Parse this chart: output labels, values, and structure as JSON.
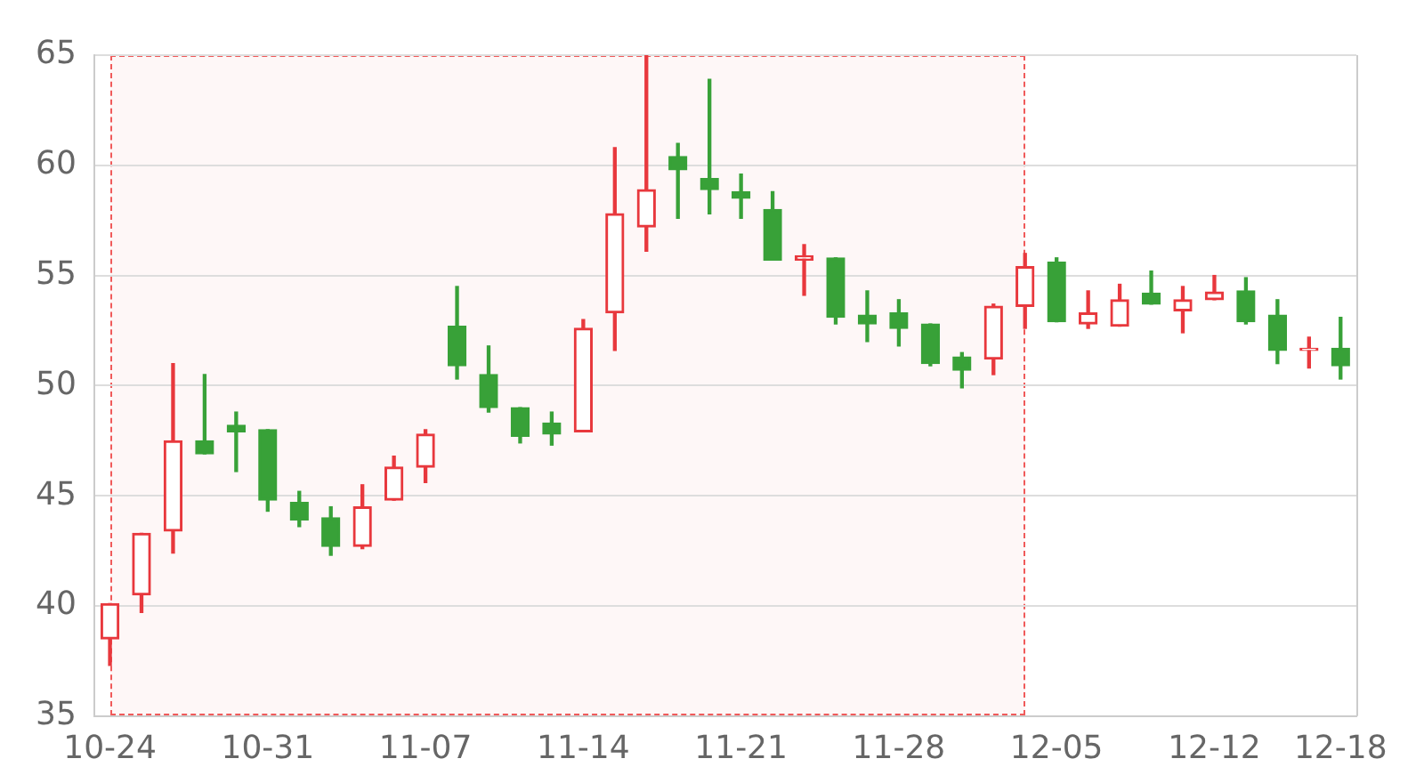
{
  "chart_data": {
    "type": "candlestick",
    "categories": [
      "10-24",
      null,
      null,
      null,
      null,
      "10-31",
      null,
      null,
      null,
      null,
      "11-07",
      null,
      null,
      null,
      null,
      "11-14",
      null,
      null,
      null,
      null,
      "11-21",
      null,
      null,
      null,
      null,
      "11-28",
      null,
      null,
      null,
      null,
      "12-05",
      null,
      null,
      null,
      null,
      "12-12",
      null,
      null,
      null,
      "12-18"
    ],
    "ohlc": [
      [
        38.5,
        40.1,
        37.3,
        40.1
      ],
      [
        40.5,
        43.3,
        39.7,
        43.3
      ],
      [
        43.4,
        51,
        42.4,
        47.5
      ],
      [
        47.5,
        50.5,
        46.9,
        46.9
      ],
      [
        48.2,
        48.8,
        46.1,
        47.9
      ],
      [
        48,
        48,
        44.3,
        44.8
      ],
      [
        44.7,
        45.2,
        43.6,
        43.9
      ],
      [
        44,
        44.5,
        42.3,
        42.7
      ],
      [
        42.7,
        45.5,
        42.6,
        44.5
      ],
      [
        44.8,
        46.8,
        44.8,
        46.3
      ],
      [
        46.3,
        48,
        45.6,
        47.8
      ],
      [
        52.7,
        54.5,
        50.3,
        50.9
      ],
      [
        50.5,
        51.8,
        48.8,
        49
      ],
      [
        49,
        49,
        47.4,
        47.7
      ],
      [
        48.3,
        48.8,
        47.3,
        47.8
      ],
      [
        47.9,
        53,
        47.9,
        52.6
      ],
      [
        53.3,
        60.8,
        51.6,
        57.8
      ],
      [
        57.2,
        65,
        56.1,
        58.9
      ],
      [
        60.4,
        61,
        57.6,
        59.8
      ],
      [
        59.4,
        63.9,
        57.8,
        58.9
      ],
      [
        58.8,
        59.6,
        57.6,
        58.5
      ],
      [
        58,
        58.8,
        55.7,
        55.7
      ],
      [
        55.7,
        56.4,
        54.1,
        55.9
      ],
      [
        55.8,
        55.8,
        52.8,
        53.1
      ],
      [
        53.2,
        54.3,
        52,
        52.8
      ],
      [
        53.3,
        53.9,
        51.8,
        52.6
      ],
      [
        52.8,
        52.8,
        50.9,
        51
      ],
      [
        51.3,
        51.5,
        49.9,
        50.7
      ],
      [
        51.2,
        53.7,
        50.5,
        53.6
      ],
      [
        53.6,
        56,
        52.6,
        55.4
      ],
      [
        55.6,
        55.8,
        52.9,
        52.9
      ],
      [
        52.8,
        54.3,
        52.6,
        53.3
      ],
      [
        52.7,
        54.6,
        52.7,
        53.9
      ],
      [
        54.2,
        55.2,
        53.7,
        53.7
      ],
      [
        53.4,
        54.5,
        52.4,
        53.9
      ],
      [
        53.9,
        55,
        53.9,
        54.25
      ],
      [
        54.3,
        54.9,
        52.8,
        52.9
      ],
      [
        53.2,
        53.9,
        51,
        51.6
      ],
      [
        51.6,
        52.2,
        50.8,
        51.7
      ],
      [
        51.7,
        53.1,
        50.3,
        50.9
      ]
    ],
    "colors": [
      "#e8383d",
      "#e8383d",
      "#e8383d",
      "#38a138",
      "#38a138",
      "#38a138",
      "#38a138",
      "#38a138",
      "#e8383d",
      "#e8383d",
      "#e8383d",
      "#38a138",
      "#38a138",
      "#38a138",
      "#38a138",
      "#e8383d",
      "#e8383d",
      "#e8383d",
      "#38a138",
      "#38a138",
      "#38a138",
      "#38a138",
      "#e8383d",
      "#38a138",
      "#38a138",
      "#38a138",
      "#38a138",
      "#38a138",
      "#e8383d",
      "#e8383d",
      "#38a138",
      "#e8383d",
      "#e8383d",
      "#38a138",
      "#e8383d",
      "#e8383d",
      "#38a138",
      "#38a138",
      "#e8383d",
      "#38a138"
    ],
    "ylim": [
      35,
      65
    ],
    "yticks": [
      35,
      40,
      45,
      50,
      55,
      60,
      65
    ],
    "grid": "y"
  }
}
